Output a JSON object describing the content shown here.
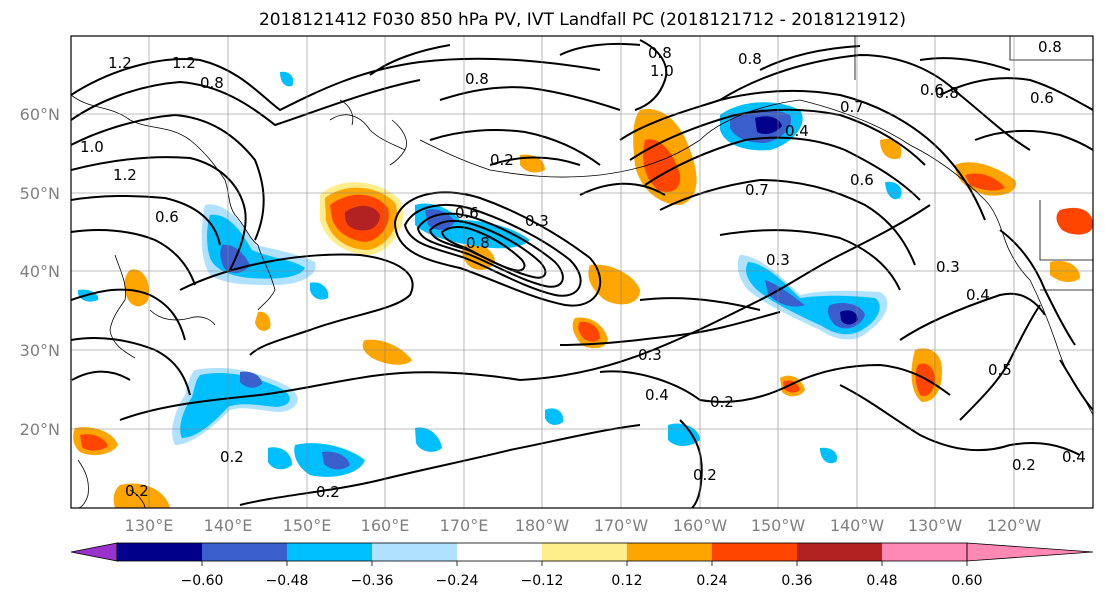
{
  "title": "2018121412 F030 850 hPa PV, IVT Landfall PC (2018121712 - 2018121912)",
  "lat_labels": [
    "60°N",
    "50°N",
    "40°N",
    "30°N",
    "20°N"
  ],
  "lon_labels": [
    "130°E",
    "140°E",
    "150°E",
    "160°E",
    "170°E",
    "180°W",
    "170°W",
    "160°W",
    "150°W",
    "140°W",
    "130°W",
    "120°W"
  ],
  "contour_labels": [
    "1.2",
    "1.2",
    "0.8",
    "1.0",
    "0.8",
    "0.8",
    "1.0",
    "1.2",
    "0.6",
    "0.8",
    "0.2",
    "0.6",
    "0.3",
    "0.8",
    "0.3",
    "0.2",
    "0.3",
    "0.2",
    "0.2",
    "0.4",
    "0.2",
    "0.2",
    "0.7",
    "0.6",
    "0.3",
    "0.4",
    "0.5",
    "0.4",
    "0.2",
    "0.8",
    "0.8",
    "0.6",
    "0.7",
    "0.4",
    "0.6"
  ],
  "colorbar": {
    "colors": [
      "#9932cc",
      "#00008b",
      "#3a5fcd",
      "#00bfff",
      "#b0e2ff",
      "#ffffff",
      "#ffec8b",
      "#ffa500",
      "#ff4500",
      "#b22222",
      "#ff89b4"
    ],
    "tick_labels": [
      "−0.60",
      "−0.48",
      "−0.36",
      "−0.24",
      "−0.12",
      "0.12",
      "0.24",
      "0.36",
      "0.48",
      "0.60"
    ]
  }
}
